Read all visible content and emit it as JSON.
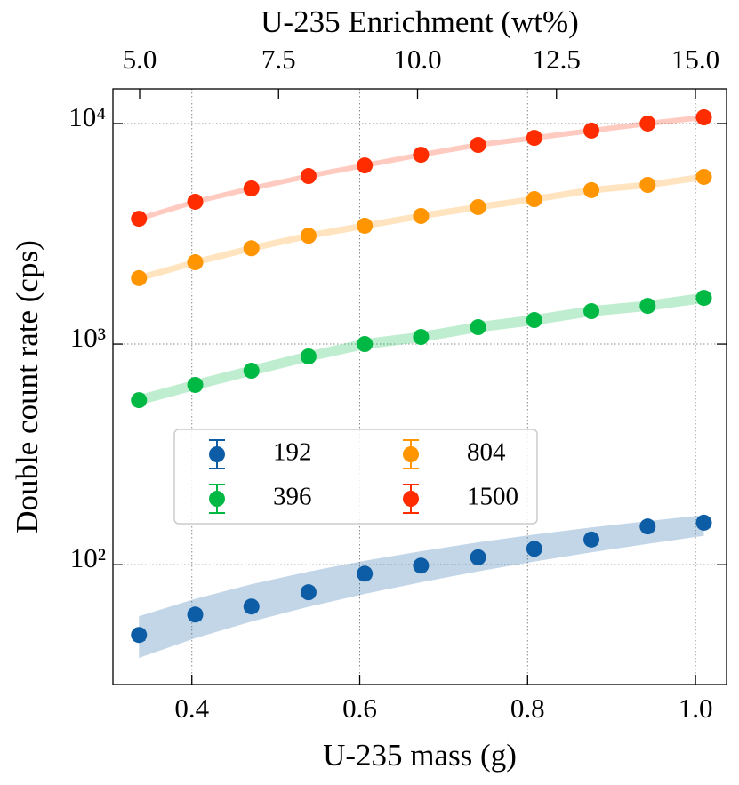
{
  "chart_data": {
    "type": "scatter",
    "xlabel": "U-235 mass (g)",
    "ylabel": "Double count rate (cps)",
    "x2label": "U-235 Enrichment (wt%)",
    "x": [
      0.337,
      0.404,
      0.471,
      0.539,
      0.606,
      0.673,
      0.741,
      0.808,
      0.876,
      0.943,
      1.01
    ],
    "series": [
      {
        "name": "192",
        "color": "#0c5da5",
        "values": [
          48,
          59.4,
          64.6,
          75,
          91,
          99,
          108,
          118,
          130,
          149,
          155
        ],
        "errors": [
          2.5,
          3,
          3,
          3.5,
          4,
          4,
          4.5,
          4.5,
          5,
          5,
          5.5
        ],
        "band_low": [
          37.8,
          46.4,
          55.2,
          64.4,
          73.7,
          83.2,
          93.2,
          103.3,
          113.7,
          124.3,
          135.2
        ],
        "band_high": [
          58.4,
          70.0,
          81.5,
          93.0,
          104.2,
          115.1,
          126.3,
          136.9,
          147.5,
          157.6,
          167.8
        ]
      },
      {
        "name": "396",
        "color": "#00b945",
        "values": [
          557,
          653,
          757,
          879,
          1000,
          1077,
          1193,
          1285,
          1410,
          1490,
          1620
        ],
        "errors": [
          10,
          11,
          12,
          13,
          14,
          15,
          16,
          17,
          18,
          19,
          20
        ],
        "band_low": [
          528,
          619,
          718,
          833,
          948,
          1021,
          1131,
          1218,
          1336,
          1412,
          1536
        ],
        "band_high": [
          588,
          689,
          799,
          927,
          1055,
          1136,
          1259,
          1356,
          1488,
          1572,
          1709
        ]
      },
      {
        "name": "804",
        "color": "#ff9500",
        "values": [
          1990,
          2350,
          2720,
          3100,
          3440,
          3810,
          4180,
          4540,
          4990,
          5270,
          5730
        ],
        "errors": [
          20,
          22,
          24,
          26,
          28,
          30,
          32,
          34,
          36,
          38,
          40
        ],
        "band_low": [
          1923,
          2271,
          2628,
          2995,
          3324,
          3681,
          4039,
          4386,
          4821,
          5092,
          5536
        ],
        "band_high": [
          2060,
          2432,
          2815,
          3209,
          3560,
          3943,
          4326,
          4699,
          5165,
          5454,
          5931
        ]
      },
      {
        "name": "1500",
        "color": "#ff2c00",
        "values": [
          3700,
          4420,
          5080,
          5780,
          6460,
          7220,
          8000,
          8610,
          9290,
          10000,
          10670
        ],
        "errors": [
          30,
          33,
          36,
          39,
          42,
          45,
          48,
          51,
          54,
          57,
          60
        ],
        "band_low": [
          3599,
          4300,
          4942,
          5623,
          6284,
          7023,
          7782,
          8375,
          9037,
          9728,
          10379
        ],
        "band_high": [
          3804,
          4544,
          5222,
          5942,
          6641,
          7422,
          8224,
          8851,
          9550,
          10280,
          10969
        ]
      }
    ],
    "xlim": [
      0.306,
      1.037
    ],
    "xticks": [
      0.4,
      0.6,
      0.8,
      {
        "value": 1,
        "label": "1.0"
      }
    ],
    "x2lim": [
      4.52,
      15.56
    ],
    "x2ticks": [
      {
        "value": 5,
        "label": "5.0"
      },
      7.5,
      {
        "value": 10,
        "label": "10.0"
      },
      12.5,
      {
        "value": 15,
        "label": "15.0"
      }
    ],
    "ylim": [
      28.6,
      14360
    ],
    "yticks": [
      {
        "value": 100,
        "label": "10²"
      },
      {
        "value": 1000,
        "label": "10³"
      },
      {
        "value": 10000,
        "label": "10⁴"
      }
    ],
    "yscale": "log",
    "grid": true,
    "legend_loc": "center left",
    "legend_ncol": 2
  }
}
